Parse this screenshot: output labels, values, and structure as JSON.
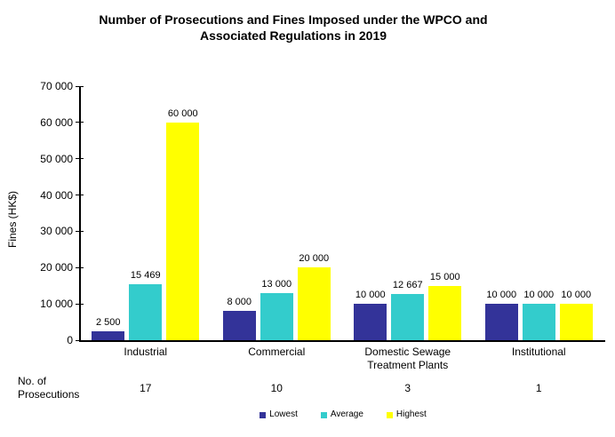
{
  "header": {
    "title_line1": "Number of Prosecutions and Fines Imposed under the WPCO and",
    "title_line2": "Associated Regulations in 2019"
  },
  "chart_data": {
    "type": "bar",
    "title": "Number of Prosecutions and Fines Imposed under the WPCO and Associated Regulations in 2019",
    "ylabel": "Fines (HK$)",
    "xlabel": "",
    "ylim": [
      0,
      70000
    ],
    "ytick_step": 10000,
    "grid": false,
    "legend_position": "bottom",
    "categories": [
      "Industrial",
      "Commercial",
      "Domestic Sewage\nTreatment Plants",
      "Institutional"
    ],
    "series": [
      {
        "name": "Lowest",
        "color": "#333399",
        "values": [
          2500,
          8000,
          10000,
          10000
        ]
      },
      {
        "name": "Average",
        "color": "#33CCCC",
        "values": [
          15469,
          13000,
          12667,
          10000
        ]
      },
      {
        "name": "Highest",
        "color": "#FFFF00",
        "values": [
          60000,
          20000,
          15000,
          10000
        ]
      }
    ],
    "prosecutions_row": {
      "label": "No. of\nProsecutions",
      "values": [
        "17",
        "10",
        "3",
        "1"
      ]
    }
  }
}
